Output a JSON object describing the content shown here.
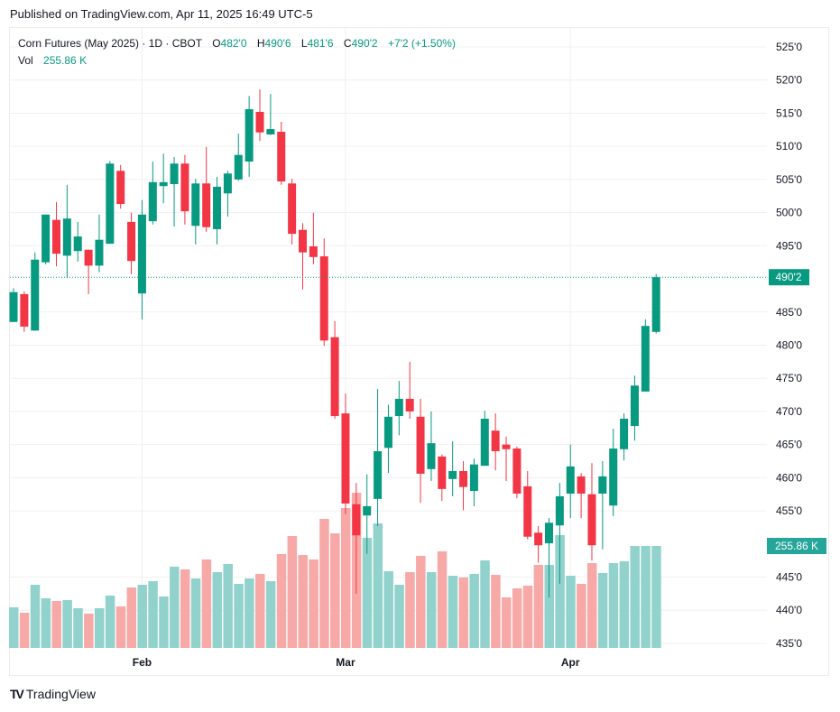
{
  "published": "Published on TradingView.com, Apr 11, 2025 16:49 UTC-5",
  "legend": {
    "symbol": "Corn Futures (May 2025) · 1D · CBOT",
    "o_label": "O",
    "o_value": "482'0",
    "h_label": "H",
    "h_value": "490'6",
    "l_label": "L",
    "l_value": "481'6",
    "c_label": "C",
    "c_value": "490'2",
    "change": "+7'2 (+1.50%)",
    "vol_label": "Vol",
    "vol_value": "255.86 K"
  },
  "logo": "TradingView",
  "colors": {
    "up": "#089981",
    "down": "#f23645",
    "up_vol": "#92d2cc",
    "down_vol": "#f7a9a7",
    "grid": "#f0f0f0"
  },
  "chart_data": {
    "type": "candlestick",
    "title": "Corn Futures (May 2025) · 1D · CBOT",
    "ylim": [
      433,
      527
    ],
    "y_ticks": [
      "525'0",
      "520'0",
      "515'0",
      "510'0",
      "505'0",
      "500'0",
      "495'0",
      "485'0",
      "480'0",
      "475'0",
      "470'0",
      "465'0",
      "460'0",
      "455'0",
      "445'0",
      "440'0",
      "435'0"
    ],
    "y_tick_values": [
      525,
      520,
      515,
      510,
      505,
      500,
      495,
      485,
      480,
      475,
      470,
      465,
      460,
      455,
      445,
      440,
      435
    ],
    "last_price_label": "490'2",
    "last_price": 490.25,
    "last_volume_label": "255.86 K",
    "last_volume": 255.86,
    "x_labels": [
      {
        "label": "Feb",
        "index": 12
      },
      {
        "label": "Mar",
        "index": 31
      },
      {
        "label": "Apr",
        "index": 52
      }
    ],
    "candles": [
      [
        483.5,
        488.6,
        483.5,
        488.0,
        101.9
      ],
      [
        487.7,
        488.1,
        482.0,
        482.8,
        88.3
      ],
      [
        482.2,
        494.0,
        482.2,
        492.9,
        158.5
      ],
      [
        492.5,
        499.7,
        492.2,
        499.7,
        124.5
      ],
      [
        498.9,
        501.6,
        491.9,
        493.8,
        117.7
      ],
      [
        493.5,
        504.2,
        490.1,
        499.1,
        120.0
      ],
      [
        494.2,
        498.6,
        492.6,
        496.4,
        99.6
      ],
      [
        494.4,
        494.4,
        487.7,
        492.0,
        86.0
      ],
      [
        492.0,
        499.7,
        491.0,
        495.9,
        99.6
      ],
      [
        495.3,
        507.8,
        495.3,
        507.4,
        131.3
      ],
      [
        506.3,
        507.2,
        500.6,
        501.3,
        104.1
      ],
      [
        498.6,
        500.0,
        490.7,
        492.7,
        151.7
      ],
      [
        487.8,
        501.9,
        483.9,
        499.7,
        158.5
      ],
      [
        498.7,
        507.7,
        498.2,
        504.6,
        167.5
      ],
      [
        504.0,
        508.9,
        501.4,
        504.6,
        129.1
      ],
      [
        504.3,
        508.4,
        497.9,
        507.4,
        203.8
      ],
      [
        507.4,
        508.7,
        498.2,
        500.2,
        197.0
      ],
      [
        498.0,
        505.1,
        495.2,
        504.4,
        174.3
      ],
      [
        504.4,
        509.9,
        497.1,
        497.8,
        221.9
      ],
      [
        497.5,
        505.4,
        495.2,
        503.9,
        190.2
      ],
      [
        502.9,
        506.3,
        499.4,
        505.9,
        210.6
      ],
      [
        505.0,
        511.9,
        504.8,
        508.7,
        160.7
      ],
      [
        507.7,
        517.6,
        505.4,
        515.6,
        174.3
      ],
      [
        515.2,
        518.6,
        510.8,
        512.1,
        185.7
      ],
      [
        511.8,
        517.9,
        511.7,
        512.6,
        167.5
      ],
      [
        512.2,
        513.7,
        504.2,
        504.7,
        235.5
      ],
      [
        504.4,
        505.1,
        495.2,
        496.8,
        280.8
      ],
      [
        497.4,
        498.4,
        488.4,
        494.0,
        233.2
      ],
      [
        494.9,
        500.0,
        492.2,
        493.3,
        221.9
      ],
      [
        493.4,
        496.1,
        479.9,
        480.7,
        323.8
      ],
      [
        481.2,
        483.6,
        468.9,
        469.3,
        287.5
      ],
      [
        469.7,
        472.7,
        454.5,
        456.1,
        350.9
      ],
      [
        456.0,
        459.2,
        442.5,
        451.3,
        389.4
      ],
      [
        454.3,
        460.5,
        448.5,
        455.7,
        276.2
      ],
      [
        456.8,
        473.4,
        452.7,
        464.0,
        312.4
      ],
      [
        464.5,
        471.0,
        460.7,
        469.2,
        192.5
      ],
      [
        469.3,
        474.6,
        466.4,
        471.9,
        158.5
      ],
      [
        471.9,
        477.5,
        468.9,
        470.0,
        190.2
      ],
      [
        469.2,
        471.9,
        456.2,
        460.6,
        230.9
      ],
      [
        461.3,
        470.0,
        459.5,
        465.2,
        190.2
      ],
      [
        463.2,
        463.5,
        456.5,
        458.3,
        242.3
      ],
      [
        459.8,
        465.5,
        457.2,
        461.0,
        181.1
      ],
      [
        461.0,
        462.5,
        455.1,
        458.6,
        176.6
      ],
      [
        458.0,
        462.9,
        455.7,
        462.0,
        185.7
      ],
      [
        461.8,
        470.1,
        461.8,
        468.9,
        219.6
      ],
      [
        467.1,
        469.7,
        461.1,
        464.0,
        183.4
      ],
      [
        465.0,
        466.2,
        459.5,
        464.3,
        126.8
      ],
      [
        464.4,
        464.7,
        456.9,
        457.6,
        149.4
      ],
      [
        458.7,
        461.0,
        450.7,
        451.1,
        156.2
      ],
      [
        451.7,
        452.7,
        447.2,
        449.8,
        208.3
      ],
      [
        450.1,
        453.9,
        441.9,
        453.2,
        208.3
      ],
      [
        452.8,
        459.2,
        444.0,
        457.2,
        283.0
      ],
      [
        457.6,
        465.0,
        453.9,
        461.7,
        181.1
      ],
      [
        460.2,
        460.7,
        453.9,
        457.6,
        160.7
      ],
      [
        457.5,
        462.2,
        447.5,
        449.8,
        212.8
      ],
      [
        457.6,
        462.5,
        449.2,
        460.2,
        187.9
      ],
      [
        455.8,
        467.4,
        454.2,
        464.4,
        212.8
      ],
      [
        464.3,
        469.7,
        462.6,
        468.9,
        217.4
      ],
      [
        467.8,
        475.4,
        465.6,
        473.9,
        255.9
      ],
      [
        473.0,
        483.9,
        473.0,
        482.9,
        255.9
      ],
      [
        482.0,
        490.75,
        481.75,
        490.25,
        255.86
      ]
    ]
  }
}
